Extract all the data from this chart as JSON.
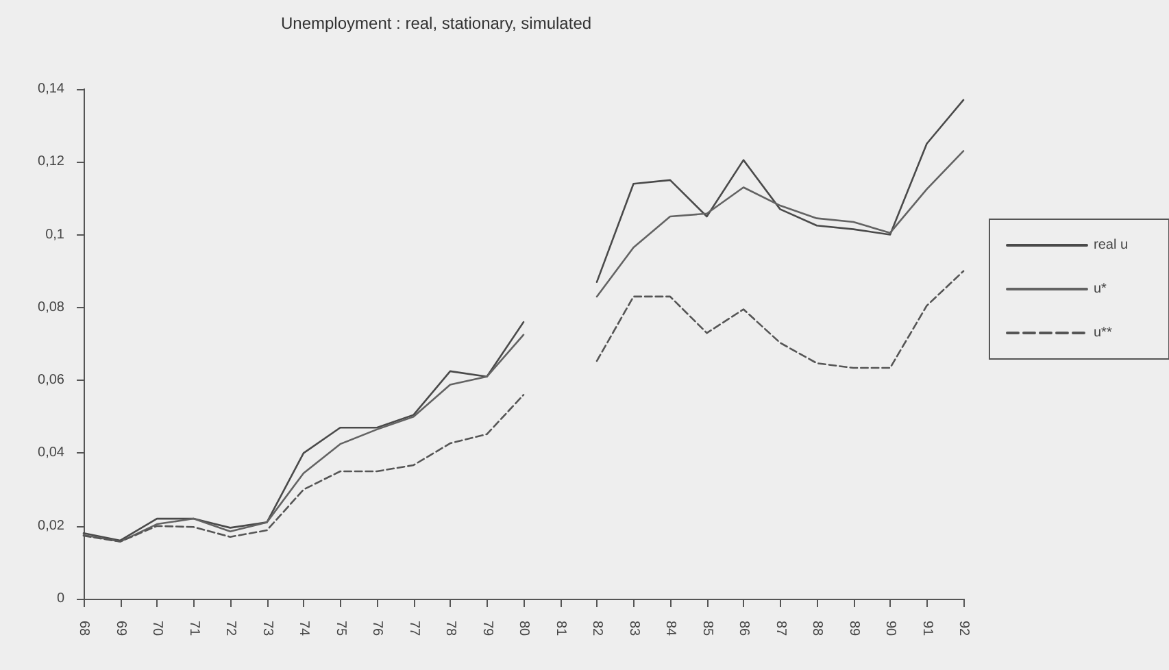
{
  "chart_data": {
    "type": "line",
    "title": "Unemployment : real, stationary, simulated",
    "categories": [
      "68",
      "69",
      "70",
      "71",
      "72",
      "73",
      "74",
      "75",
      "76",
      "77",
      "78",
      "79",
      "80",
      "81",
      "82",
      "83",
      "84",
      "85",
      "86",
      "87",
      "88",
      "89",
      "90",
      "91",
      "92"
    ],
    "series": [
      {
        "name": "real u",
        "color": "#4a4a4a",
        "line_style": "solid",
        "values": [
          0.018,
          0.016,
          0.022,
          0.022,
          0.0195,
          0.021,
          0.04,
          0.047,
          0.047,
          0.0505,
          0.0625,
          0.061,
          0.076,
          null,
          0.087,
          0.114,
          0.115,
          0.105,
          0.1205,
          0.107,
          0.1025,
          0.1015,
          0.1,
          0.125,
          0.137
        ]
      },
      {
        "name": "u*",
        "color": "#636363",
        "line_style": "solid",
        "values": [
          0.0175,
          0.0157,
          0.0205,
          0.022,
          0.0185,
          0.021,
          0.0345,
          0.0425,
          0.0465,
          0.05,
          0.0588,
          0.061,
          0.0725,
          null,
          0.083,
          0.0965,
          0.105,
          0.1058,
          0.113,
          0.108,
          0.1045,
          0.1035,
          0.1005,
          0.1125,
          0.123
        ]
      },
      {
        "name": "u**",
        "color": "#555555",
        "line_style": "dashed",
        "values": [
          0.0173,
          0.0157,
          0.02,
          0.0197,
          0.017,
          0.0188,
          0.03,
          0.035,
          0.035,
          0.0367,
          0.0427,
          0.0452,
          0.056,
          null,
          0.0653,
          0.083,
          0.083,
          0.073,
          0.0795,
          0.0703,
          0.0647,
          0.0634,
          0.0634,
          0.0805,
          0.09
        ]
      }
    ],
    "ylim": [
      0,
      0.14
    ],
    "yticks": [
      0,
      {
        "value": 0.02,
        "label": "0,02"
      },
      {
        "value": 0.04,
        "label": "0,04"
      },
      {
        "value": 0.06,
        "label": "0,06"
      },
      {
        "value": 0.08,
        "label": "0,08"
      },
      {
        "value": 0.1,
        "label": "0,1"
      },
      {
        "value": 0.12,
        "label": "0,12"
      },
      {
        "value": 0.14,
        "label": "0,14"
      }
    ],
    "grid": false,
    "legend": "right",
    "marker": "none"
  }
}
